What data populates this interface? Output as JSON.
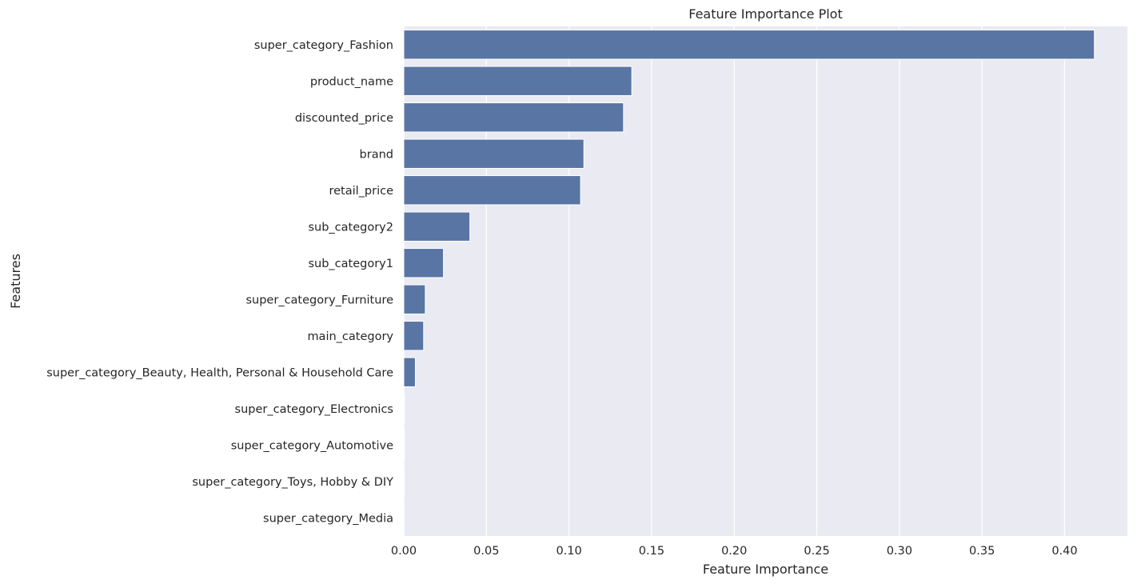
{
  "chart_data": {
    "type": "bar",
    "orientation": "horizontal",
    "title": "Feature Importance Plot",
    "xlabel": "Feature Importance",
    "ylabel": "Features",
    "categories": [
      "super_category_Fashion",
      "product_name",
      "discounted_price",
      "brand",
      "retail_price",
      "sub_category2",
      "sub_category1",
      "super_category_Furniture",
      "main_category",
      "super_category_Beauty, Health, Personal & Household Care",
      "super_category_Electronics",
      "super_category_Automotive",
      "super_category_Toys, Hobby & DIY",
      "super_category_Media"
    ],
    "values": [
      0.418,
      0.138,
      0.133,
      0.109,
      0.107,
      0.04,
      0.024,
      0.013,
      0.012,
      0.007,
      0.0004,
      0.0004,
      0.0003,
      0.0002
    ],
    "xlim": [
      0,
      0.438
    ],
    "xticks": [
      "0.00",
      "0.05",
      "0.10",
      "0.15",
      "0.20",
      "0.25",
      "0.30",
      "0.35",
      "0.40"
    ],
    "grid": true,
    "colors": {
      "bar": "#5875a4",
      "background": "#eaeaf2",
      "grid": "#ffffff",
      "text": "#262626"
    }
  }
}
